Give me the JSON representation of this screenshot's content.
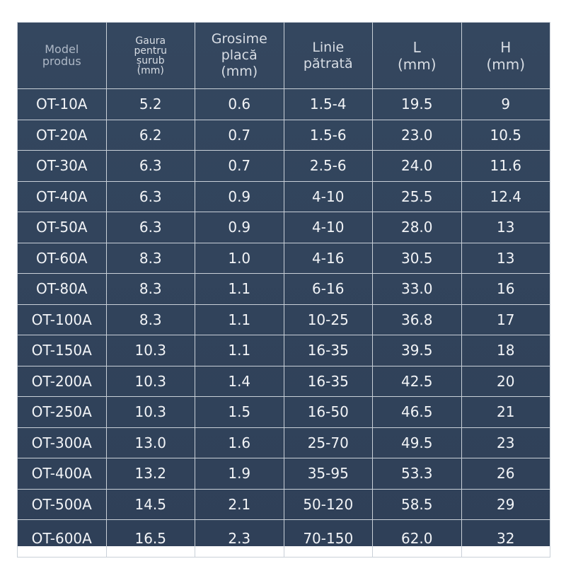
{
  "table": {
    "header": [
      [
        "Model",
        "produs"
      ],
      [
        "Gaura",
        "pentru",
        "șurub",
        "(mm)"
      ],
      [
        "Grosime",
        "placă",
        "(mm)"
      ],
      [
        "Linie",
        "pătrată"
      ],
      [
        "L",
        "(mm)"
      ],
      [
        "H",
        "(mm)"
      ]
    ],
    "rows": [
      [
        "OT-10A",
        "5.2",
        "0.6",
        "1.5-4",
        "19.5",
        "9"
      ],
      [
        "OT-20A",
        "6.2",
        "0.7",
        "1.5-6",
        "23.0",
        "10.5"
      ],
      [
        "OT-30A",
        "6.3",
        "0.7",
        "2.5-6",
        "24.0",
        "11.6"
      ],
      [
        "OT-40A",
        "6.3",
        "0.9",
        "4-10",
        "25.5",
        "12.4"
      ],
      [
        "OT-50A",
        "6.3",
        "0.9",
        "4-10",
        "28.0",
        "13"
      ],
      [
        "OT-60A",
        "8.3",
        "1.0",
        "4-16",
        "30.5",
        "13"
      ],
      [
        "OT-80A",
        "8.3",
        "1.1",
        "6-16",
        "33.0",
        "16"
      ],
      [
        "OT-100A",
        "8.3",
        "1.1",
        "10-25",
        "36.8",
        "17"
      ],
      [
        "OT-150A",
        "10.3",
        "1.1",
        "16-35",
        "39.5",
        "18"
      ],
      [
        "OT-200A",
        "10.3",
        "1.4",
        "16-35",
        "42.5",
        "20"
      ],
      [
        "OT-250A",
        "10.3",
        "1.5",
        "16-50",
        "46.5",
        "21"
      ],
      [
        "OT-300A",
        "13.0",
        "1.6",
        "25-70",
        "49.5",
        "23"
      ],
      [
        "OT-400A",
        "13.2",
        "1.9",
        "35-95",
        "53.3",
        "26"
      ],
      [
        "OT-500A",
        "14.5",
        "2.1",
        "50-120",
        "58.5",
        "29"
      ],
      [
        "OT-600A",
        "16.5",
        "2.3",
        "70-150",
        "62.0",
        "32"
      ]
    ]
  }
}
